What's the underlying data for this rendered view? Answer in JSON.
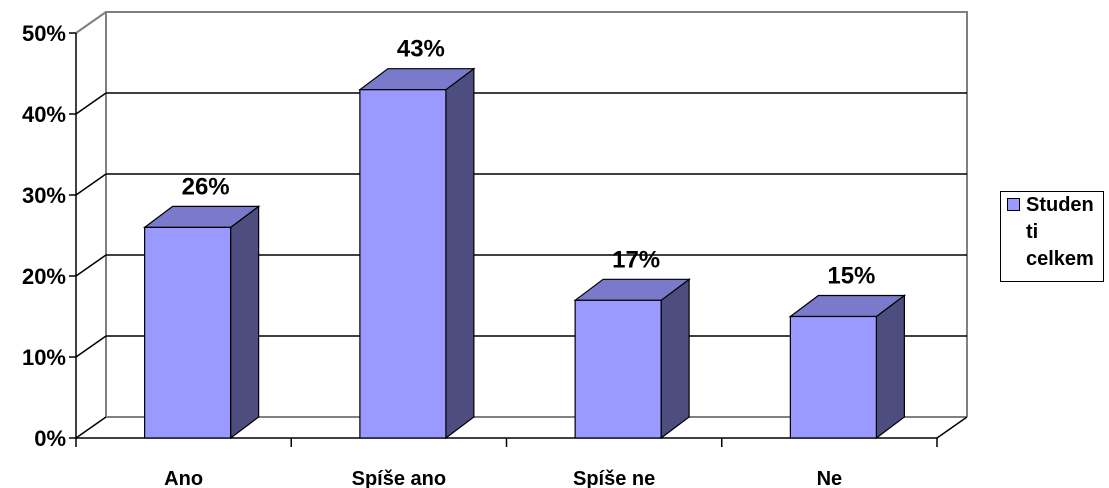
{
  "chart_data": {
    "type": "bar",
    "categories": [
      "Ano",
      "Spíše ano",
      "Spíše ne",
      "Ne"
    ],
    "series": [
      {
        "name": "Studenti celkem",
        "values": [
          26,
          43,
          17,
          15
        ],
        "color": "#9999ff"
      }
    ],
    "value_labels": [
      "26%",
      "43%",
      "17%",
      "15%"
    ],
    "y_ticks": [
      "0%",
      "10%",
      "20%",
      "30%",
      "40%",
      "50%"
    ],
    "ylim": [
      0,
      50
    ],
    "grid": true,
    "style": "3d-column",
    "legend": {
      "position": "right",
      "label_lines": [
        "Studen",
        "ti",
        "celkem"
      ]
    },
    "colors": {
      "bar_front": "#9999ff",
      "bar_top": "#7a7acc",
      "bar_side": "#4d4d80",
      "grid": "#000000",
      "frame": "#808080"
    }
  }
}
